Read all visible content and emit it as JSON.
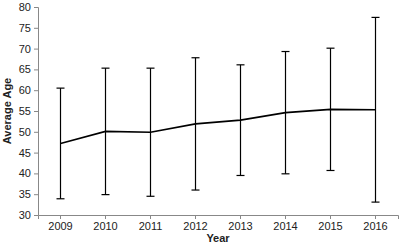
{
  "chart_data": {
    "type": "line",
    "x_label": "Year",
    "y_label": "Average Age",
    "categories": [
      "2009",
      "2010",
      "2011",
      "2012",
      "2013",
      "2014",
      "2015",
      "2016"
    ],
    "values": [
      47.2,
      50.1,
      49.9,
      51.9,
      52.8,
      54.6,
      55.4,
      55.3
    ],
    "errors": [
      13.3,
      15.2,
      15.4,
      15.9,
      13.3,
      14.7,
      14.7,
      22.2
    ],
    "color": "#000000",
    "ylim": [
      30,
      80
    ],
    "yticks": [
      30,
      35,
      40,
      45,
      50,
      55,
      60,
      65,
      70,
      75,
      80
    ],
    "grid": false
  }
}
